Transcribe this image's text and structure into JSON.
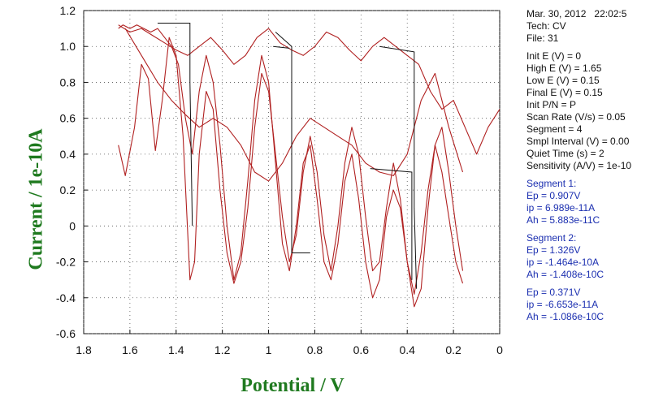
{
  "header": {
    "date": "Mar. 30, 2012",
    "time": "22:02:5",
    "tech": "Tech: CV",
    "file": "File: 31"
  },
  "parameters": [
    "Init E (V) = 0",
    "High E (V) = 1.65",
    "Low E (V) = 0.15",
    "Final E (V) = 0.15",
    "Init P/N = P",
    "Scan Rate (V/s) = 0.05",
    "Segment = 4",
    "Smpl Interval (V) = 0.00",
    "Quiet Time (s) = 2",
    "Sensitivity (A/V) = 1e-10"
  ],
  "segments": [
    {
      "title": "Segment 1:",
      "lines": [
        "Ep = 0.907V",
        "ip = 6.989e-11A",
        "Ah = 5.883e-11C"
      ]
    },
    {
      "title": "Segment 2:",
      "lines": [
        "Ep = 1.326V",
        "ip = -1.464e-10A",
        "Ah = -1.408e-10C"
      ]
    },
    {
      "title": "",
      "lines": [
        "Ep = 0.371V",
        "ip = -6.653e-11A",
        "Ah = -1.086e-10C"
      ]
    }
  ],
  "colors": {
    "trace": "#b02020",
    "baseline": "#111111",
    "axis_label": "#1f7a1f",
    "info_blue": "#1b2fb0",
    "grid": "#555555"
  },
  "chart_data": {
    "type": "line",
    "xlabel": "Potential / V",
    "ylabel": "Current / 1e-10A",
    "xlim": [
      1.8,
      0
    ],
    "ylim": [
      -0.6,
      1.2
    ],
    "x_reversed": true,
    "grid": true,
    "xticks": [
      "1.8",
      "1.6",
      "1.4",
      "1.2",
      "1",
      "0.8",
      "0.6",
      "0.4",
      "0.2",
      "0"
    ],
    "yticks": [
      "1.2",
      "1.0",
      "0.8",
      "0.6",
      "0.4",
      "0.2",
      "0",
      "-0.2",
      "-0.4",
      "-0.6"
    ],
    "series": [
      {
        "x": [
          1.65,
          1.62,
          1.58,
          1.55,
          1.52,
          1.49,
          1.46,
          1.43,
          1.4,
          1.37,
          1.34,
          1.32,
          1.3,
          1.27,
          1.24,
          1.21,
          1.18,
          1.15,
          1.12,
          1.09,
          1.06,
          1.03,
          1.0,
          0.97,
          0.94,
          0.91,
          0.88,
          0.85,
          0.82,
          0.79,
          0.76,
          0.73,
          0.7,
          0.67,
          0.64,
          0.61,
          0.58,
          0.55,
          0.52,
          0.49,
          0.46,
          0.43,
          0.4,
          0.37,
          0.34,
          0.31,
          0.28,
          0.25,
          0.22,
          0.19,
          0.16
        ],
        "y": [
          0.45,
          0.28,
          0.55,
          0.9,
          0.82,
          0.42,
          0.7,
          1.05,
          0.95,
          0.5,
          -0.3,
          -0.2,
          0.4,
          0.75,
          0.65,
          0.2,
          -0.15,
          -0.32,
          -0.2,
          0.1,
          0.55,
          0.85,
          0.75,
          0.4,
          0.05,
          -0.2,
          -0.05,
          0.3,
          0.5,
          0.3,
          -0.05,
          -0.25,
          0.0,
          0.35,
          0.55,
          0.4,
          0.05,
          -0.25,
          -0.2,
          0.1,
          0.35,
          0.15,
          -0.2,
          -0.38,
          -0.15,
          0.2,
          0.45,
          0.3,
          0.05,
          -0.2,
          -0.32
        ]
      },
      {
        "x": [
          0.16,
          0.19,
          0.22,
          0.25,
          0.28,
          0.31,
          0.34,
          0.37,
          0.4,
          0.43,
          0.46,
          0.49,
          0.52,
          0.55,
          0.58,
          0.61,
          0.64,
          0.67,
          0.7,
          0.73,
          0.76,
          0.79,
          0.82,
          0.85,
          0.88,
          0.91,
          0.94,
          0.97,
          1.0,
          1.03,
          1.06,
          1.09,
          1.12,
          1.15,
          1.18,
          1.21,
          1.24,
          1.27,
          1.3,
          1.33,
          1.36,
          1.39,
          1.42,
          1.45,
          1.48,
          1.51,
          1.54,
          1.57,
          1.6,
          1.63,
          1.65
        ],
        "y": [
          -0.25,
          0.0,
          0.3,
          0.55,
          0.45,
          0.1,
          -0.35,
          -0.45,
          -0.2,
          0.1,
          0.2,
          0.05,
          -0.3,
          -0.4,
          -0.2,
          0.15,
          0.4,
          0.25,
          -0.1,
          -0.3,
          -0.2,
          0.15,
          0.45,
          0.35,
          0.0,
          -0.25,
          -0.1,
          0.35,
          0.8,
          0.95,
          0.7,
          0.25,
          -0.15,
          -0.3,
          0.0,
          0.45,
          0.8,
          0.95,
          0.75,
          0.4,
          0.6,
          0.9,
          1.0,
          1.05,
          1.1,
          1.08,
          1.1,
          1.12,
          1.1,
          1.12,
          1.1
        ]
      },
      {
        "x": [
          1.65,
          1.6,
          1.55,
          1.5,
          1.45,
          1.4,
          1.35,
          1.3,
          1.25,
          1.2,
          1.15,
          1.1,
          1.05,
          1.0,
          0.95,
          0.9,
          0.85,
          0.8,
          0.75,
          0.7,
          0.65,
          0.6,
          0.55,
          0.5,
          0.45,
          0.4,
          0.35,
          0.3,
          0.25,
          0.2,
          0.15,
          0.1,
          0.05,
          0.0
        ],
        "y": [
          1.12,
          1.08,
          1.1,
          1.06,
          1.02,
          0.98,
          0.95,
          1.0,
          1.05,
          0.98,
          0.9,
          0.95,
          1.05,
          1.1,
          1.02,
          0.98,
          0.95,
          1.0,
          1.08,
          1.05,
          0.98,
          0.92,
          1.0,
          1.05,
          1.0,
          0.95,
          0.9,
          0.75,
          0.65,
          0.7,
          0.55,
          0.4,
          0.55,
          0.65
        ]
      },
      {
        "x": [
          1.62,
          1.55,
          1.48,
          1.42,
          1.36,
          1.3,
          1.24,
          1.18,
          1.12,
          1.06,
          1.0,
          0.94,
          0.88,
          0.82,
          0.76,
          0.7,
          0.64,
          0.58,
          0.52,
          0.46,
          0.4,
          0.34,
          0.28,
          0.22,
          0.16
        ],
        "y": [
          1.1,
          0.95,
          0.8,
          0.7,
          0.62,
          0.55,
          0.6,
          0.55,
          0.45,
          0.3,
          0.25,
          0.35,
          0.5,
          0.6,
          0.55,
          0.5,
          0.45,
          0.35,
          0.3,
          0.28,
          0.4,
          0.7,
          0.85,
          0.55,
          0.3
        ]
      }
    ],
    "baseline_marks": [
      {
        "x": [
          1.48,
          1.34,
          1.34,
          1.33
        ],
        "y": [
          1.13,
          1.13,
          0.8,
          0.0
        ]
      },
      {
        "x": [
          0.97,
          0.9,
          0.9,
          0.82
        ],
        "y": [
          1.08,
          1.0,
          -0.15,
          -0.15
        ]
      },
      {
        "x": [
          0.98,
          0.91
        ],
        "y": [
          1.0,
          0.99
        ]
      },
      {
        "x": [
          0.52,
          0.37,
          0.37,
          0.36
        ],
        "y": [
          1.0,
          0.97,
          0.1,
          -0.35
        ]
      },
      {
        "x": [
          0.56,
          0.38,
          0.38
        ],
        "y": [
          0.32,
          0.3,
          -0.3
        ]
      }
    ]
  }
}
